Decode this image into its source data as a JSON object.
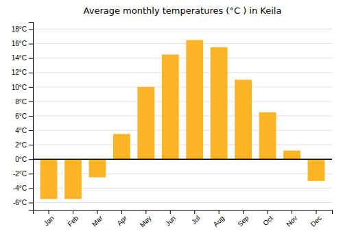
{
  "chart_data": {
    "type": "bar",
    "title": "Average monthly temperatures (°C ) in Keila",
    "categories": [
      "Jan",
      "Feb",
      "Mar",
      "Apr",
      "May",
      "Jun",
      "Jul",
      "Aug",
      "Sep",
      "Oct",
      "Nov",
      "Dec"
    ],
    "values": [
      -5.5,
      -5.5,
      -2.5,
      3.5,
      10.0,
      14.5,
      16.5,
      15.5,
      11.0,
      6.5,
      1.2,
      -3.0
    ],
    "color": "#FDB525",
    "ylim": [
      -7,
      19
    ],
    "yticks": [
      {
        "value": -6,
        "label": "-6°C"
      },
      {
        "value": -4,
        "label": "-4°C"
      },
      {
        "value": -2,
        "label": "-2°C"
      },
      {
        "value": 0,
        "label": "0°C"
      },
      {
        "value": 2,
        "label": "2°C"
      },
      {
        "value": 4,
        "label": "4°C"
      },
      {
        "value": 6,
        "label": "6°C"
      },
      {
        "value": 8,
        "label": "8°C"
      },
      {
        "value": 10,
        "label": "10°C"
      },
      {
        "value": 12,
        "label": "12°C"
      },
      {
        "value": 14,
        "label": "14°C"
      },
      {
        "value": 16,
        "label": "16°C"
      },
      {
        "value": 18,
        "label": "18°C"
      }
    ],
    "grid": true
  }
}
